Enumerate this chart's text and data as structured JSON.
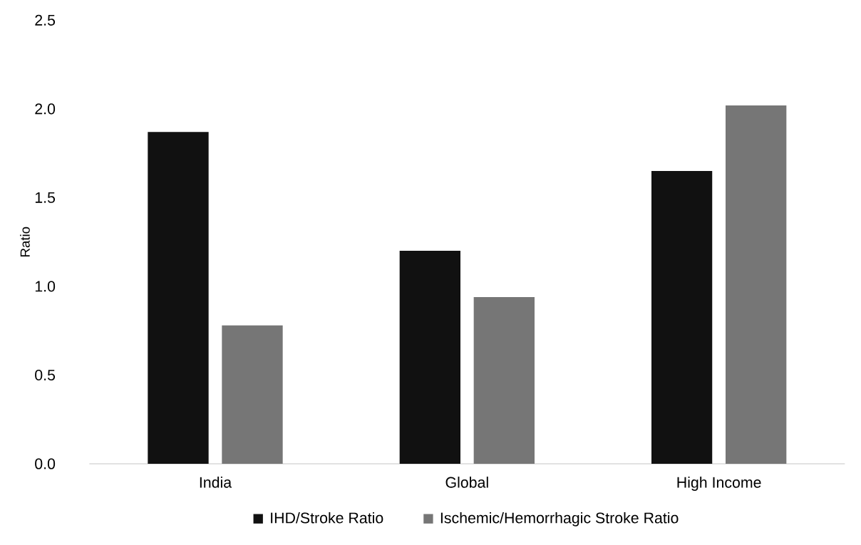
{
  "chart_data": {
    "type": "bar",
    "ylabel": "Ratio",
    "categories": [
      "India",
      "Global",
      "High Income"
    ],
    "series": [
      {
        "name": "IHD/Stroke Ratio",
        "color": "#111111",
        "values": [
          1.87,
          1.2,
          1.65
        ]
      },
      {
        "name": "Ischemic/Hemorrhagic Stroke Ratio",
        "color": "#767676",
        "values": [
          0.78,
          0.94,
          2.02
        ]
      }
    ],
    "ylim": [
      0,
      2.5
    ],
    "yticks": [
      {
        "value": 0,
        "label": "0.0"
      },
      {
        "value": 0.5,
        "label": "0.5"
      },
      {
        "value": 1.0,
        "label": "1.0"
      },
      {
        "value": 1.5,
        "label": "1.5"
      },
      {
        "value": 2.0,
        "label": "2.0"
      },
      {
        "value": 2.5,
        "label": "2.5"
      }
    ],
    "legend": "bottom"
  }
}
